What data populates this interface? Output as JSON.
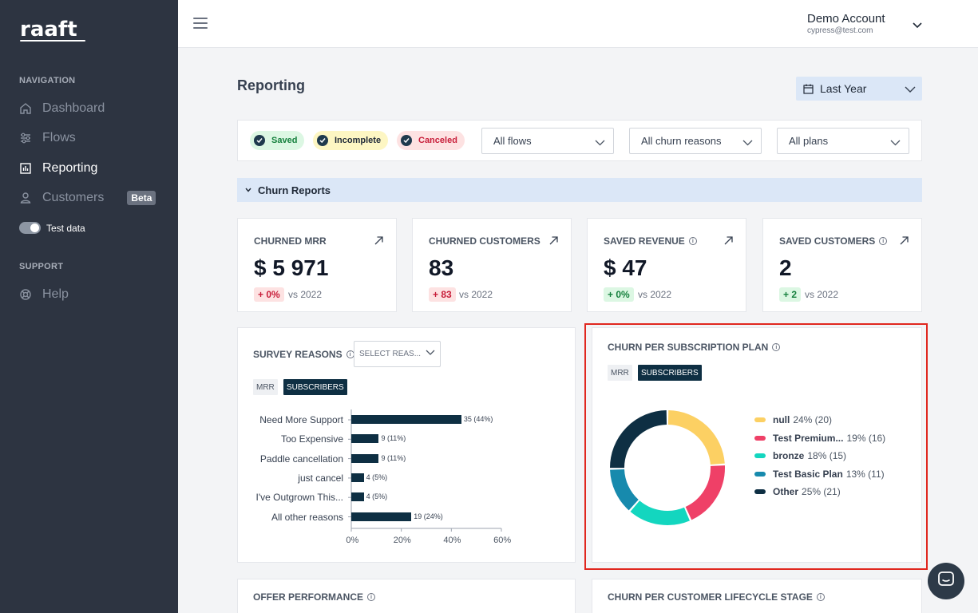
{
  "brand": {
    "logo": "raaft"
  },
  "sidebar": {
    "nav_heading": "NAVIGATION",
    "items": [
      {
        "label": "Dashboard",
        "icon": "home-icon"
      },
      {
        "label": "Flows",
        "icon": "sliders-icon"
      },
      {
        "label": "Reporting",
        "icon": "chart-icon",
        "active": true
      },
      {
        "label": "Customers",
        "icon": "user-icon",
        "badge": "Beta"
      }
    ],
    "test_data_label": "Test data",
    "support_heading": "SUPPORT",
    "help_label": "Help"
  },
  "header": {
    "account_name": "Demo Account",
    "account_email": "cypress@test.com"
  },
  "page": {
    "title": "Reporting",
    "date_range": "Last Year"
  },
  "filters": {
    "pills": [
      {
        "label": "Saved",
        "bg": "#dcf7e3",
        "color": "#15803d"
      },
      {
        "label": "Incomplete",
        "bg": "#fdf6c3",
        "color": "#1f2937"
      },
      {
        "label": "Canceled",
        "bg": "#fde2e2",
        "color": "#c81e3a"
      }
    ],
    "flows": "All flows",
    "churn_reasons": "All churn reasons",
    "plans": "All plans"
  },
  "section": {
    "label": "Churn Reports"
  },
  "kpis": [
    {
      "title": "CHURNED MRR",
      "value": "$ 5 971",
      "delta": "+ 0%",
      "delta_style": "red",
      "vs": "vs 2022",
      "info": false
    },
    {
      "title": "CHURNED CUSTOMERS",
      "value": "83",
      "delta": "+ 83",
      "delta_style": "red",
      "vs": "vs 2022",
      "info": false
    },
    {
      "title": "SAVED REVENUE",
      "value": "$ 47",
      "delta": "+ 0%",
      "delta_style": "green",
      "vs": "vs 2022",
      "info": true
    },
    {
      "title": "SAVED CUSTOMERS",
      "value": "2",
      "delta": "+ 2",
      "delta_style": "green",
      "vs": "vs 2022",
      "info": true
    }
  ],
  "survey": {
    "title": "SURVEY REASONS",
    "select_placeholder": "SELECT REAS...",
    "toggle": [
      "MRR",
      "SUBSCRIBERS"
    ]
  },
  "plan": {
    "title": "CHURN PER SUBSCRIPTION PLAN",
    "toggle": [
      "MRR",
      "SUBSCRIBERS"
    ]
  },
  "bottom_cards": {
    "offer": "OFFER PERFORMANCE",
    "lifecycle": "CHURN PER CUSTOMER LIFECYCLE STAGE"
  },
  "chart_data": [
    {
      "type": "bar",
      "orientation": "horizontal",
      "categories": [
        "Need More Support",
        "Too Expensive",
        "Paddle cancellation",
        "just cancel",
        "I've Outgrown This...",
        "All other reasons"
      ],
      "values": [
        35,
        9,
        9,
        4,
        4,
        19
      ],
      "data_labels": [
        "35 (44%)",
        "9 (11%)",
        "9 (11%)",
        "4 (5%)",
        "4 (5%)",
        "19 (24%)"
      ],
      "percent": [
        44,
        11,
        11,
        5,
        5,
        24
      ],
      "xticks": [
        "0%",
        "20%",
        "40%",
        "60%"
      ],
      "xlim": [
        0,
        60
      ],
      "color": "#0e2f43"
    },
    {
      "type": "pie",
      "variant": "donut",
      "series": [
        {
          "name": "null",
          "percent": 24,
          "count": 20,
          "label": "24% (20)",
          "color": "#fcd063"
        },
        {
          "name": "Test Premium...",
          "percent": 19,
          "count": 16,
          "label": "19% (16)",
          "color": "#ef4067"
        },
        {
          "name": "bronze",
          "percent": 18,
          "count": 15,
          "label": "18% (15)",
          "color": "#13d6bf"
        },
        {
          "name": "Test Basic Plan",
          "percent": 13,
          "count": 11,
          "label": "13% (11)",
          "color": "#178aad"
        },
        {
          "name": "Other",
          "percent": 25,
          "count": 21,
          "label": "25% (21)",
          "color": "#0e2f43"
        }
      ]
    }
  ]
}
